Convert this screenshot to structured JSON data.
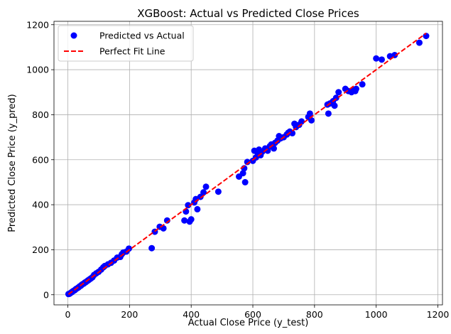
{
  "chart_data": {
    "type": "scatter",
    "title": "XGBoost: Actual vs Predicted Close Prices",
    "xlabel": "Actual Close Price (y_test)",
    "ylabel": "Predicted Close Price (y_pred)",
    "xlim": [
      -45,
      1215
    ],
    "ylim": [
      -45,
      1215
    ],
    "xticks": [
      0,
      200,
      400,
      600,
      800,
      1000,
      1200
    ],
    "yticks": [
      0,
      200,
      400,
      600,
      800,
      1000,
      1200
    ],
    "grid": true,
    "legend_position": "top-left",
    "colors": {
      "points": "#0000ff",
      "fit_line": "#ff0000",
      "grid": "#b0b0b0"
    },
    "series": [
      {
        "name": "Predicted vs Actual",
        "kind": "scatter",
        "points": [
          [
            2,
            3
          ],
          [
            5,
            4
          ],
          [
            8,
            7
          ],
          [
            12,
            11
          ],
          [
            15,
            14
          ],
          [
            18,
            17
          ],
          [
            22,
            20
          ],
          [
            25,
            24
          ],
          [
            28,
            27
          ],
          [
            32,
            30
          ],
          [
            35,
            33
          ],
          [
            38,
            37
          ],
          [
            42,
            40
          ],
          [
            45,
            44
          ],
          [
            48,
            47
          ],
          [
            52,
            50
          ],
          [
            55,
            54
          ],
          [
            58,
            56
          ],
          [
            62,
            60
          ],
          [
            65,
            63
          ],
          [
            68,
            66
          ],
          [
            72,
            70
          ],
          [
            75,
            73
          ],
          [
            80,
            78
          ],
          [
            85,
            88
          ],
          [
            92,
            95
          ],
          [
            100,
            102
          ],
          [
            108,
            112
          ],
          [
            115,
            122
          ],
          [
            120,
            128
          ],
          [
            130,
            135
          ],
          [
            140,
            142
          ],
          [
            150,
            152
          ],
          [
            160,
            165
          ],
          [
            170,
            168
          ],
          [
            175,
            180
          ],
          [
            180,
            188
          ],
          [
            190,
            192
          ],
          [
            198,
            205
          ],
          [
            272,
            207
          ],
          [
            282,
            280
          ],
          [
            298,
            302
          ],
          [
            310,
            295
          ],
          [
            322,
            330
          ],
          [
            378,
            330
          ],
          [
            383,
            370
          ],
          [
            390,
            398
          ],
          [
            395,
            325
          ],
          [
            400,
            335
          ],
          [
            410,
            410
          ],
          [
            415,
            425
          ],
          [
            420,
            380
          ],
          [
            430,
            435
          ],
          [
            440,
            455
          ],
          [
            448,
            480
          ],
          [
            488,
            458
          ],
          [
            555,
            525
          ],
          [
            568,
            540
          ],
          [
            572,
            562
          ],
          [
            575,
            500
          ],
          [
            582,
            590
          ],
          [
            600,
            595
          ],
          [
            605,
            640
          ],
          [
            610,
            610
          ],
          [
            615,
            632
          ],
          [
            620,
            645
          ],
          [
            625,
            620
          ],
          [
            630,
            635
          ],
          [
            640,
            650
          ],
          [
            648,
            640
          ],
          [
            655,
            660
          ],
          [
            660,
            668
          ],
          [
            668,
            650
          ],
          [
            672,
            675
          ],
          [
            680,
            685
          ],
          [
            685,
            705
          ],
          [
            690,
            695
          ],
          [
            700,
            700
          ],
          [
            710,
            712
          ],
          [
            715,
            720
          ],
          [
            720,
            725
          ],
          [
            728,
            718
          ],
          [
            735,
            760
          ],
          [
            740,
            745
          ],
          [
            750,
            755
          ],
          [
            758,
            770
          ],
          [
            780,
            790
          ],
          [
            785,
            805
          ],
          [
            790,
            775
          ],
          [
            842,
            845
          ],
          [
            845,
            805
          ],
          [
            850,
            850
          ],
          [
            858,
            855
          ],
          [
            860,
            860
          ],
          [
            865,
            840
          ],
          [
            870,
            875
          ],
          [
            878,
            900
          ],
          [
            900,
            915
          ],
          [
            910,
            905
          ],
          [
            920,
            900
          ],
          [
            925,
            910
          ],
          [
            932,
            905
          ],
          [
            935,
            915
          ],
          [
            955,
            935
          ],
          [
            1000,
            1050
          ],
          [
            1018,
            1045
          ],
          [
            1045,
            1060
          ],
          [
            1060,
            1065
          ],
          [
            1140,
            1120
          ],
          [
            1162,
            1150
          ]
        ]
      },
      {
        "name": "Perfect Fit Line",
        "kind": "line",
        "style": "dashed",
        "points": [
          [
            2,
            2
          ],
          [
            1162,
            1162
          ]
        ]
      }
    ]
  }
}
